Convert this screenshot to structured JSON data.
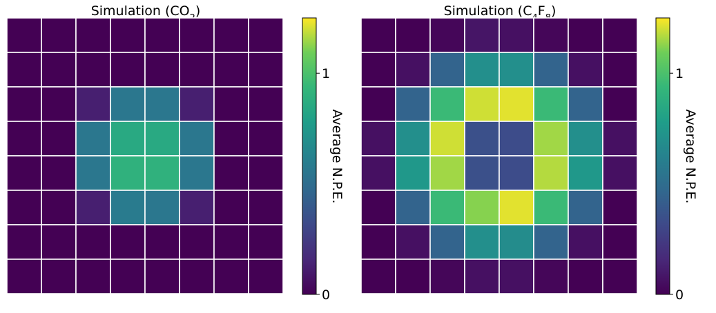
{
  "chart_data": [
    {
      "type": "heatmap",
      "title": "Simulation (CO2)",
      "title_parts": {
        "prefix": "Simulation (CO",
        "sub": "2",
        "suffix": ")"
      },
      "colorbar_label": "Average N.P.E.",
      "colorbar_range": [
        0,
        1.25
      ],
      "colorbar_ticks": [
        0,
        1
      ],
      "colorbar_tick_labels": [
        "0",
        "1"
      ],
      "values": [
        [
          0.0,
          0.0,
          0.0,
          0.0,
          0.0,
          0.0,
          0.0,
          0.0
        ],
        [
          0.0,
          0.0,
          0.0,
          0.0,
          0.0,
          0.0,
          0.0,
          0.0
        ],
        [
          0.0,
          0.0,
          0.12,
          0.56,
          0.56,
          0.12,
          0.0,
          0.0
        ],
        [
          0.0,
          0.0,
          0.56,
          0.85,
          0.85,
          0.56,
          0.0,
          0.0
        ],
        [
          0.0,
          0.0,
          0.56,
          0.9,
          0.9,
          0.56,
          0.0,
          0.0
        ],
        [
          0.0,
          0.0,
          0.12,
          0.58,
          0.56,
          0.12,
          0.0,
          0.0
        ],
        [
          0.0,
          0.0,
          0.0,
          0.0,
          0.0,
          0.0,
          0.0,
          0.0
        ],
        [
          0.0,
          0.0,
          0.0,
          0.0,
          0.0,
          0.0,
          0.0,
          0.0
        ]
      ],
      "colormap": "viridis",
      "grid_color": "#ffffff"
    },
    {
      "type": "heatmap",
      "title": "Simulation (C4F8)",
      "title_parts": {
        "prefix": "Simulation (C",
        "sub": "4",
        "mid": "F",
        "sub2": "8",
        "suffix": ")"
      },
      "colorbar_label": "Average N.P.E.",
      "colorbar_range": [
        0,
        1.25
      ],
      "colorbar_ticks": [
        0,
        1
      ],
      "colorbar_tick_labels": [
        "0",
        "1"
      ],
      "values": [
        [
          0.0,
          0.0,
          0.02,
          0.08,
          0.06,
          0.02,
          0.0,
          0.0
        ],
        [
          0.0,
          0.06,
          0.45,
          0.7,
          0.7,
          0.45,
          0.06,
          0.0
        ],
        [
          0.0,
          0.45,
          0.95,
          1.2,
          1.22,
          0.95,
          0.45,
          0.0
        ],
        [
          0.06,
          0.7,
          1.2,
          0.35,
          0.33,
          1.15,
          0.7,
          0.06
        ],
        [
          0.06,
          0.75,
          1.15,
          0.35,
          0.33,
          1.17,
          0.75,
          0.06
        ],
        [
          0.0,
          0.45,
          0.95,
          1.12,
          1.22,
          0.95,
          0.45,
          0.0
        ],
        [
          0.0,
          0.06,
          0.45,
          0.7,
          0.68,
          0.45,
          0.06,
          0.0
        ],
        [
          0.0,
          0.0,
          0.02,
          0.06,
          0.06,
          0.02,
          0.0,
          0.0
        ]
      ],
      "colormap": "viridis",
      "grid_color": "#ffffff"
    }
  ]
}
